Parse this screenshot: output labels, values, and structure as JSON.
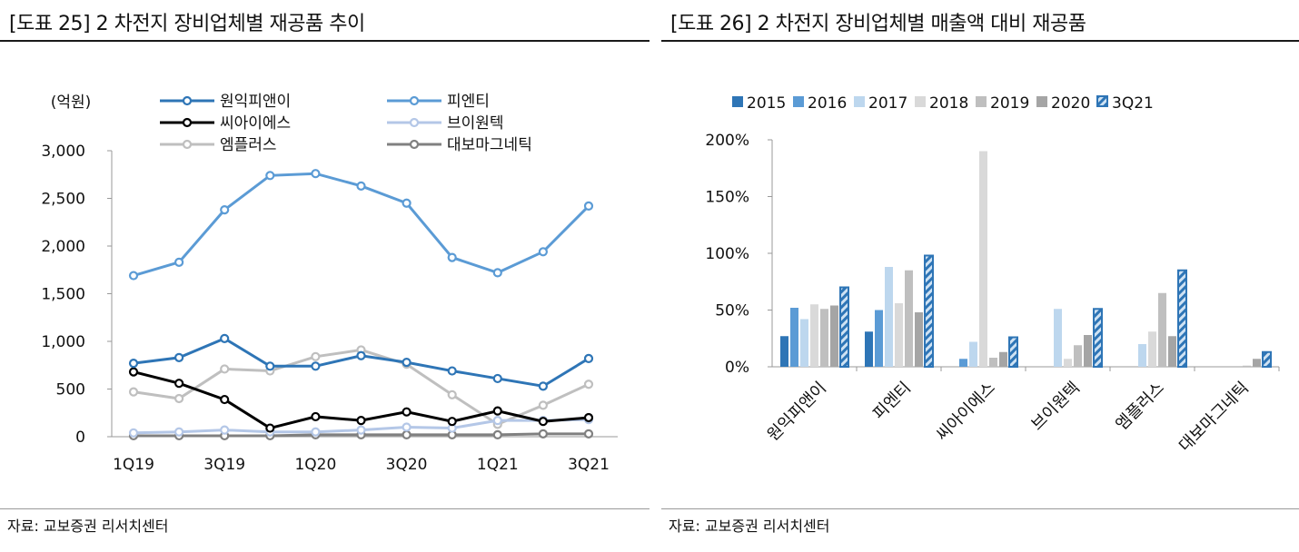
{
  "left": {
    "title": "[도표 25] 2 차전지 장비업체별 재공품 추이",
    "source": "자료: 교보증권 리서치센터",
    "chart_data": {
      "type": "line",
      "title": "[도표 25] 2 차전지 장비업체별 재공품 추이",
      "unit_label": "(억원)",
      "x": [
        "1Q19",
        "2Q19",
        "3Q19",
        "4Q19",
        "1Q20",
        "2Q20",
        "3Q20",
        "4Q20",
        "1Q21",
        "2Q21",
        "3Q21"
      ],
      "x_tick_labels": [
        "1Q19",
        "",
        "3Q19",
        "",
        "1Q20",
        "",
        "3Q20",
        "",
        "1Q21",
        "",
        "3Q21"
      ],
      "ylim": [
        0,
        3000
      ],
      "y_ticks": [
        "3,000",
        "2,500",
        "2,000",
        "1,500",
        "1,000",
        "500",
        "0"
      ],
      "legend_position": "top",
      "series": [
        {
          "name": "원익피앤이",
          "color": "#2e75b6",
          "values": [
            770,
            830,
            1030,
            740,
            740,
            850,
            780,
            690,
            610,
            530,
            820
          ]
        },
        {
          "name": "피엔티",
          "color": "#5b9bd5",
          "values": [
            1690,
            1830,
            2380,
            2740,
            2760,
            2630,
            2450,
            1880,
            1720,
            1940,
            2420
          ]
        },
        {
          "name": "씨아이에스",
          "color": "#000000",
          "values": [
            680,
            560,
            390,
            90,
            210,
            170,
            260,
            160,
            270,
            160,
            200
          ]
        },
        {
          "name": "브이원텍",
          "color": "#b4c7e7",
          "values": [
            40,
            50,
            70,
            50,
            50,
            70,
            100,
            90,
            170,
            170,
            180
          ]
        },
        {
          "name": "엠플러스",
          "color": "#bfbfbf",
          "values": [
            470,
            400,
            710,
            690,
            840,
            910,
            760,
            440,
            130,
            330,
            550
          ]
        },
        {
          "name": "대보마그네틱",
          "color": "#808080",
          "values": [
            10,
            10,
            10,
            10,
            20,
            20,
            20,
            20,
            20,
            30,
            30
          ]
        }
      ]
    }
  },
  "right": {
    "title": "[도표 26] 2 차전지 장비업체별 매출액 대비 재공품",
    "source": "자료: 교보증권 리서치센터",
    "chart_data": {
      "type": "bar",
      "title": "[도표 26] 2 차전지 장비업체별 매출액 대비 재공품",
      "categories": [
        "원익피앤이",
        "피엔티",
        "씨아이에스",
        "브이원텍",
        "엠플러스",
        "대보마그네틱"
      ],
      "ylim": [
        0,
        200
      ],
      "y_ticks": [
        "200%",
        "150%",
        "100%",
        "50%",
        "0%"
      ],
      "legend_position": "top",
      "series": [
        {
          "name": "2015",
          "color": "#2e75b6",
          "values": [
            27,
            31,
            null,
            null,
            null,
            null
          ]
        },
        {
          "name": "2016",
          "color": "#5b9bd5",
          "values": [
            52,
            50,
            7,
            null,
            null,
            null
          ]
        },
        {
          "name": "2017",
          "color": "#bdd7ee",
          "values": [
            42,
            88,
            22,
            51,
            20,
            null
          ]
        },
        {
          "name": "2018",
          "color": "#d9d9d9",
          "values": [
            55,
            56,
            190,
            7,
            31,
            null
          ]
        },
        {
          "name": "2019",
          "color": "#bfbfbf",
          "values": [
            51,
            85,
            8,
            19,
            65,
            1
          ]
        },
        {
          "name": "2020",
          "color": "#a5a5a5",
          "values": [
            54,
            48,
            13,
            28,
            27,
            7
          ]
        },
        {
          "name": "3Q21",
          "color": "#2e75b6",
          "pattern": "hatched",
          "values": [
            70,
            98,
            26,
            51,
            85,
            13
          ]
        }
      ]
    }
  }
}
